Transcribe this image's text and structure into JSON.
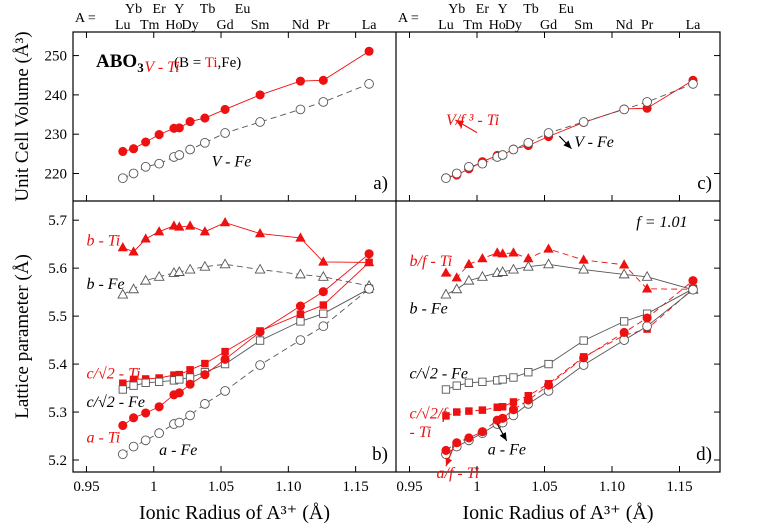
{
  "chart_data": [
    {
      "panel": "a",
      "type": "scatter",
      "panel_label": "a)",
      "ylabel": "Unit Cell Volume (Å³)",
      "xlabel": "",
      "xlim": [
        0.94,
        1.18
      ],
      "ylim": [
        213,
        256
      ],
      "yticks": [
        220,
        230,
        240,
        250
      ],
      "grid": false,
      "title_main": "ABO",
      "title_sub": "3",
      "title_note": "(B = ",
      "title_note_ti": "Ti",
      "title_note_end": ",Fe)",
      "annotations": [
        {
          "key": "v_ti",
          "text": "V - Ti",
          "color": "#ee1111",
          "at": [
            0.993,
            245.8
          ]
        },
        {
          "key": "v_fe",
          "text": "V - Fe",
          "color": "#000000",
          "at": [
            1.043,
            221.8
          ]
        }
      ],
      "arrows": [],
      "series": [
        {
          "name": "V - Ti",
          "color": "#ee1111",
          "marker": "filled-circle",
          "line": "solid",
          "x": [
            0.977,
            0.985,
            0.994,
            1.004,
            1.015,
            1.019,
            1.027,
            1.038,
            1.053,
            1.079,
            1.109,
            1.126,
            1.16
          ],
          "y": [
            225.6,
            226.3,
            228.0,
            229.9,
            231.5,
            231.6,
            233.2,
            234.1,
            236.3,
            240.0,
            243.5,
            243.7,
            251.1
          ]
        },
        {
          "name": "V - Fe",
          "color": "#333333",
          "marker": "open-circle",
          "line": "dashed",
          "x": [
            0.977,
            0.985,
            0.994,
            1.004,
            1.015,
            1.019,
            1.027,
            1.038,
            1.053,
            1.079,
            1.109,
            1.126,
            1.16
          ],
          "y": [
            218.8,
            220.0,
            221.7,
            222.5,
            224.2,
            224.7,
            226.1,
            227.8,
            230.3,
            233.1,
            236.3,
            238.2,
            242.8
          ]
        }
      ]
    },
    {
      "panel": "c",
      "type": "scatter",
      "panel_label": "c)",
      "ylabel": "",
      "xlabel": "",
      "xlim": [
        0.94,
        1.18
      ],
      "ylim": [
        213,
        256
      ],
      "yticks": [],
      "grid": false,
      "annotations": [
        {
          "key": "vf_ti",
          "text": "V/f ³ - Ti",
          "color": "#ee1111",
          "at": [
            0.977,
            232.3
          ]
        },
        {
          "key": "v_fe_c",
          "text": "V - Fe",
          "color": "#000000",
          "at": [
            1.072,
            226.7
          ]
        }
      ],
      "arrows": [
        {
          "from": [
            1.0,
            230.4
          ],
          "to": [
            0.984,
            233.6
          ],
          "color": "#ee1111"
        },
        {
          "from": [
            1.061,
            229.5
          ],
          "to": [
            1.07,
            226.3
          ],
          "color": "#000000"
        }
      ],
      "series": [
        {
          "name": "V/f³ - Ti",
          "color": "#ee1111",
          "marker": "filled-circle",
          "line": "solid",
          "x": [
            0.977,
            0.985,
            0.994,
            1.004,
            1.015,
            1.019,
            1.027,
            1.038,
            1.053,
            1.079,
            1.109,
            1.126,
            1.16
          ],
          "y": [
            218.9,
            219.6,
            221.2,
            223.0,
            224.6,
            224.7,
            226.2,
            227.1,
            229.4,
            233.0,
            236.4,
            236.6,
            243.7
          ]
        },
        {
          "name": "V - Fe",
          "color": "#333333",
          "marker": "open-circle",
          "line": "dashed",
          "x": [
            0.977,
            0.985,
            0.994,
            1.004,
            1.015,
            1.019,
            1.027,
            1.038,
            1.053,
            1.079,
            1.109,
            1.126,
            1.16
          ],
          "y": [
            218.8,
            220.0,
            221.7,
            222.5,
            224.2,
            224.7,
            226.1,
            227.8,
            230.3,
            233.1,
            236.3,
            238.2,
            242.8
          ]
        }
      ]
    },
    {
      "panel": "b",
      "type": "scatter",
      "panel_label": "b)",
      "ylabel": "Lattice parameter (Å)",
      "xlabel": "Ionic Radius of A³⁺ (Å)",
      "xlim": [
        0.94,
        1.18
      ],
      "ylim": [
        5.175,
        5.74
      ],
      "yticks": [
        5.2,
        5.3,
        5.4,
        5.5,
        5.6,
        5.7
      ],
      "xticks": [
        0.95,
        1.0,
        1.05,
        1.1,
        1.15
      ],
      "grid": false,
      "annotations": [
        {
          "key": "b_ti",
          "text": "b - Ti",
          "color": "#ee1111",
          "at": [
            0.95,
            5.647
          ]
        },
        {
          "key": "b_fe",
          "text": "b - Fe",
          "color": "#000000",
          "at": [
            0.95,
            5.557
          ]
        },
        {
          "key": "c_ti",
          "text": "c/√2 - Ti",
          "color": "#ee1111",
          "at": [
            0.95,
            5.37
          ]
        },
        {
          "key": "c_fe",
          "text": "c/√2 - Fe",
          "color": "#000000",
          "at": [
            0.95,
            5.31
          ]
        },
        {
          "key": "a_ti",
          "text": "a - Ti",
          "color": "#ee1111",
          "at": [
            0.95,
            5.236
          ]
        },
        {
          "key": "a_fe",
          "text": "a - Fe",
          "color": "#000000",
          "at": [
            1.004,
            5.21
          ]
        }
      ],
      "arrows": [],
      "series": [
        {
          "name": "b - Ti",
          "color": "#ee1111",
          "marker": "filled-triangle",
          "line": "solid",
          "x": [
            0.977,
            0.985,
            0.994,
            1.004,
            1.015,
            1.019,
            1.027,
            1.038,
            1.053,
            1.079,
            1.109,
            1.126,
            1.16
          ],
          "y": [
            5.643,
            5.634,
            5.661,
            5.676,
            5.688,
            5.686,
            5.688,
            5.676,
            5.695,
            5.672,
            5.663,
            5.613,
            5.612
          ]
        },
        {
          "name": "b - Fe",
          "color": "#333333",
          "marker": "open-triangle",
          "line": "dashed",
          "x": [
            0.977,
            0.985,
            0.994,
            1.004,
            1.015,
            1.019,
            1.027,
            1.038,
            1.053,
            1.079,
            1.109,
            1.126,
            1.16
          ],
          "y": [
            5.545,
            5.556,
            5.574,
            5.582,
            5.59,
            5.592,
            5.597,
            5.603,
            5.608,
            5.597,
            5.587,
            5.582,
            5.563
          ]
        },
        {
          "name": "c/√2 - Ti",
          "color": "#ee1111",
          "marker": "filled-square",
          "line": "solid",
          "x": [
            0.977,
            0.985,
            0.994,
            1.004,
            1.015,
            1.019,
            1.027,
            1.038,
            1.053,
            1.079,
            1.109,
            1.126,
            1.16
          ],
          "y": [
            5.36,
            5.368,
            5.369,
            5.371,
            5.377,
            5.378,
            5.388,
            5.401,
            5.426,
            5.469,
            5.504,
            5.523,
            5.612
          ]
        },
        {
          "name": "c/√2 - Fe",
          "color": "#333333",
          "marker": "open-square",
          "line": "solid",
          "x": [
            0.977,
            0.985,
            0.994,
            1.004,
            1.015,
            1.019,
            1.027,
            1.038,
            1.053,
            1.079,
            1.109,
            1.126,
            1.16
          ],
          "y": [
            5.347,
            5.355,
            5.361,
            5.363,
            5.366,
            5.368,
            5.372,
            5.383,
            5.4,
            5.449,
            5.489,
            5.505,
            5.557
          ]
        },
        {
          "name": "a - Ti",
          "color": "#ee1111",
          "marker": "filled-circle",
          "line": "solid",
          "x": [
            0.977,
            0.985,
            0.994,
            1.004,
            1.015,
            1.019,
            1.027,
            1.038,
            1.053,
            1.079,
            1.109,
            1.126,
            1.16
          ],
          "y": [
            5.272,
            5.288,
            5.298,
            5.311,
            5.336,
            5.34,
            5.358,
            5.378,
            5.41,
            5.467,
            5.521,
            5.551,
            5.63
          ]
        },
        {
          "name": "a - Fe",
          "color": "#333333",
          "marker": "open-circle",
          "line": "dashed",
          "x": [
            0.977,
            0.985,
            0.994,
            1.004,
            1.015,
            1.019,
            1.027,
            1.038,
            1.053,
            1.079,
            1.109,
            1.126,
            1.16
          ],
          "y": [
            5.212,
            5.228,
            5.241,
            5.256,
            5.275,
            5.278,
            5.293,
            5.317,
            5.344,
            5.398,
            5.45,
            5.479,
            5.557
          ]
        }
      ]
    },
    {
      "panel": "d",
      "type": "scatter",
      "panel_label": "d)",
      "ylabel": "",
      "xlabel": "Ionic Radius of A³⁺ (Å)",
      "xlim": [
        0.94,
        1.18
      ],
      "ylim": [
        5.175,
        5.74
      ],
      "yticks": [],
      "xticks": [
        0.95,
        1.0,
        1.05,
        1.1,
        1.15
      ],
      "grid": false,
      "annotations": [
        {
          "key": "f_value",
          "text": "f = 1.01",
          "color": "#000000",
          "at": [
            1.118,
            5.686
          ]
        },
        {
          "key": "bf_ti",
          "text": "b/f - Ti",
          "color": "#ee1111",
          "at": [
            0.95,
            5.604
          ]
        },
        {
          "key": "b_fe_d",
          "text": "b - Fe",
          "color": "#000000",
          "at": [
            0.95,
            5.505
          ]
        },
        {
          "key": "c_fe_d",
          "text": "c/√2 - Fe",
          "color": "#000000",
          "at": [
            0.95,
            5.37
          ]
        },
        {
          "key": "cf_ti",
          "text": "c/√2/f",
          "color": "#ee1111",
          "at": [
            0.95,
            5.287
          ]
        },
        {
          "key": "cf_ti_2",
          "text": "- Ti",
          "color": "#ee1111",
          "at": [
            0.95,
            5.248
          ]
        },
        {
          "key": "a_fe_d",
          "text": "a - Fe",
          "color": "#000000",
          "at": [
            1.008,
            5.212
          ]
        },
        {
          "key": "af_ti",
          "text": "a/f - Ti",
          "color": "#ee1111",
          "at": [
            0.97,
            5.162
          ]
        }
      ],
      "arrows": [
        {
          "from": [
            0.983,
            5.23
          ],
          "to": [
            0.977,
            5.187
          ],
          "color": "#ee1111"
        },
        {
          "from": [
            1.015,
            5.275
          ],
          "to": [
            1.022,
            5.24
          ],
          "color": "#000000"
        }
      ],
      "series": [
        {
          "name": "b/f - Ti",
          "color": "#ee1111",
          "marker": "filled-triangle",
          "line": "dashed",
          "x": [
            0.977,
            0.985,
            0.994,
            1.004,
            1.015,
            1.019,
            1.027,
            1.038,
            1.053,
            1.079,
            1.109,
            1.126,
            1.16
          ],
          "y": [
            5.59,
            5.58,
            5.608,
            5.62,
            5.632,
            5.63,
            5.632,
            5.62,
            5.64,
            5.617,
            5.607,
            5.557,
            5.556
          ]
        },
        {
          "name": "b - Fe",
          "color": "#333333",
          "marker": "open-triangle",
          "line": "solid",
          "x": [
            0.977,
            0.985,
            0.994,
            1.004,
            1.015,
            1.019,
            1.027,
            1.038,
            1.053,
            1.079,
            1.109,
            1.126,
            1.16
          ],
          "y": [
            5.545,
            5.556,
            5.574,
            5.582,
            5.59,
            5.592,
            5.597,
            5.603,
            5.608,
            5.597,
            5.587,
            5.582,
            5.555
          ]
        },
        {
          "name": "c/√2 - Fe",
          "color": "#333333",
          "marker": "open-square",
          "line": "solid",
          "x": [
            0.977,
            0.985,
            0.994,
            1.004,
            1.015,
            1.019,
            1.027,
            1.038,
            1.053,
            1.079,
            1.109,
            1.126,
            1.16
          ],
          "y": [
            5.347,
            5.355,
            5.361,
            5.363,
            5.366,
            5.368,
            5.372,
            5.383,
            5.4,
            5.449,
            5.489,
            5.505,
            5.557
          ]
        },
        {
          "name": "c/√2/f - Ti",
          "color": "#ee1111",
          "marker": "filled-square",
          "line": "dashed",
          "x": [
            0.977,
            0.985,
            0.994,
            1.004,
            1.015,
            1.019,
            1.027,
            1.038,
            1.053,
            1.079,
            1.109,
            1.126,
            1.16
          ],
          "y": [
            5.292,
            5.3,
            5.302,
            5.304,
            5.31,
            5.311,
            5.321,
            5.334,
            5.359,
            5.415,
            5.46,
            5.473,
            5.557
          ]
        },
        {
          "name": "a - Fe",
          "color": "#333333",
          "marker": "open-circle",
          "line": "solid",
          "x": [
            0.977,
            0.985,
            0.994,
            1.004,
            1.015,
            1.019,
            1.027,
            1.038,
            1.053,
            1.079,
            1.109,
            1.126,
            1.16
          ],
          "y": [
            5.212,
            5.228,
            5.241,
            5.256,
            5.275,
            5.278,
            5.293,
            5.317,
            5.344,
            5.398,
            5.45,
            5.479,
            5.555
          ]
        },
        {
          "name": "a/f - Ti",
          "color": "#ee1111",
          "marker": "filled-circle",
          "line": "dashed",
          "x": [
            0.977,
            0.985,
            0.994,
            1.004,
            1.015,
            1.019,
            1.027,
            1.038,
            1.053,
            1.079,
            1.109,
            1.126,
            1.16
          ],
          "y": [
            5.22,
            5.236,
            5.246,
            5.259,
            5.283,
            5.287,
            5.305,
            5.325,
            5.356,
            5.413,
            5.466,
            5.496,
            5.574
          ]
        }
      ]
    }
  ],
  "top_axis": {
    "prefix": "A =",
    "upper": [
      {
        "label": "Yb",
        "x": 0.985
      },
      {
        "label": "Er",
        "x": 1.004
      },
      {
        "label": "Y",
        "x": 1.019
      },
      {
        "label": "Tb",
        "x": 1.04
      },
      {
        "label": "Eu",
        "x": 1.066
      }
    ],
    "lower": [
      {
        "label": "Lu",
        "x": 0.977
      },
      {
        "label": "Tm",
        "x": 0.997
      },
      {
        "label": "Ho",
        "x": 1.015
      },
      {
        "label": "Dy",
        "x": 1.027
      },
      {
        "label": "Gd",
        "x": 1.053
      },
      {
        "label": "Sm",
        "x": 1.079
      },
      {
        "label": "Nd",
        "x": 1.109
      },
      {
        "label": "Pr",
        "x": 1.126
      },
      {
        "label": "La",
        "x": 1.16
      }
    ]
  }
}
